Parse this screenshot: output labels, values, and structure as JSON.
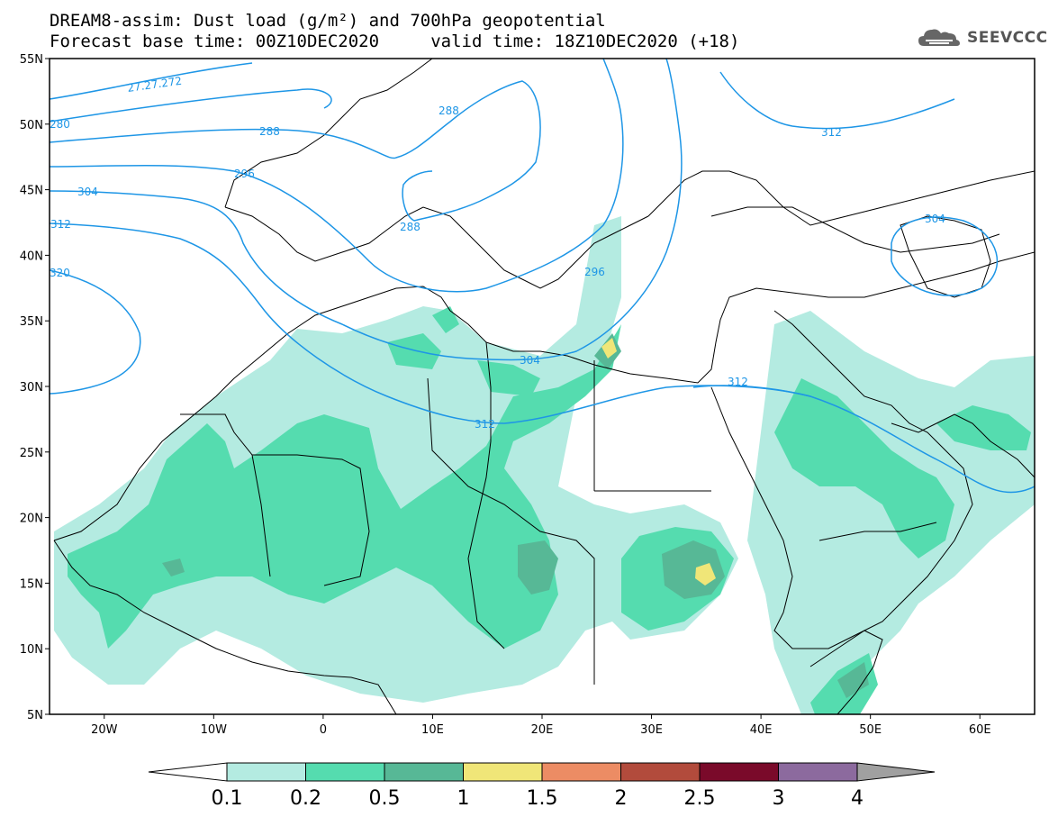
{
  "title": {
    "line1": "DREAM8-assim: Dust load (g/m²) and 700hPa geopotential",
    "line2": "Forecast base time: 00Z10DEC2020     valid time: 18Z10DEC2020 (+18)"
  },
  "logo": {
    "text": "SEEVCCC",
    "icon": "cloud-logo-icon"
  },
  "map": {
    "projection": "lat-lon",
    "lon_range": [
      -25,
      65
    ],
    "lat_range": [
      5,
      55
    ],
    "lat_ticks": [
      "55N",
      "50N",
      "45N",
      "40N",
      "35N",
      "30N",
      "25N",
      "20N",
      "15N",
      "10N",
      "5N"
    ],
    "lat_values": [
      55,
      50,
      45,
      40,
      35,
      30,
      25,
      20,
      15,
      10,
      5
    ],
    "lon_ticks": [
      "20W",
      "10W",
      "0",
      "10E",
      "20E",
      "30E",
      "40E",
      "50E",
      "60E"
    ],
    "lon_values": [
      -20,
      -10,
      0,
      10,
      20,
      30,
      40,
      50,
      60
    ],
    "contour_color": "#1e96e6",
    "contour_labels": [
      "27.27.272",
      "280",
      "288",
      "296",
      "304",
      "312",
      "320",
      "288",
      "288",
      "296",
      "304",
      "312",
      "312",
      "312",
      "304"
    ]
  },
  "colorbar": {
    "levels": [
      "0.1",
      "0.2",
      "0.5",
      "1",
      "1.5",
      "2",
      "2.5",
      "3",
      "4"
    ],
    "colors": [
      "#b4ebe1",
      "#55dcaf",
      "#57b896",
      "#f0e678",
      "#ec8c64",
      "#b24b3c",
      "#7a0a2a",
      "#8c6a9e",
      "#a0a0a0"
    ]
  }
}
